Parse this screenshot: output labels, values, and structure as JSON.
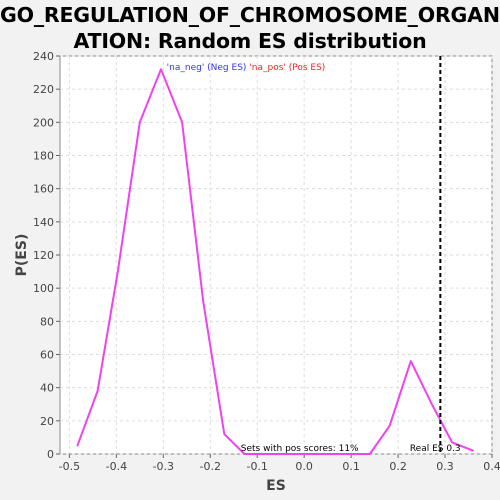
{
  "title": {
    "line1": "GO_REGULATION_OF_CHROMOSOME_ORGANIZ",
    "line2": "ATION: Random ES distribution"
  },
  "colors": {
    "background": "#f2f2f2",
    "plot_bg": "#ffffff",
    "curve": "#ee44ee",
    "neg_legend": "#3333ff",
    "pos_legend": "#ee2222",
    "grid": "#dddddd",
    "real_es_line": "#000000"
  },
  "chart_data": {
    "type": "line",
    "title": "GO_REGULATION_OF_CHROMOSOME_ORGANIZATION: Random ES distribution",
    "xlabel": "ES",
    "ylabel": "P(ES)",
    "xlim": [
      -0.52,
      0.4
    ],
    "ylim": [
      0,
      240
    ],
    "xticks": [
      -0.5,
      -0.4,
      -0.3,
      -0.2,
      -0.1,
      0.0,
      0.1,
      0.2,
      0.3,
      0.4
    ],
    "xtick_labels": [
      "-0.5",
      "-0.4",
      "-0.3",
      "-0.2",
      "-0.1",
      "0.0",
      "0.1",
      "0.2",
      "0.3",
      "0.4"
    ],
    "yticks": [
      0,
      20,
      40,
      60,
      80,
      100,
      120,
      140,
      160,
      180,
      200,
      220,
      240
    ],
    "ytick_labels": [
      "0",
      "20",
      "40",
      "60",
      "80",
      "100",
      "120",
      "140",
      "160",
      "180",
      "200",
      "220",
      "240"
    ],
    "grid": true,
    "legend_position": "top-center",
    "series": [
      {
        "x": [
          -0.483,
          -0.44,
          -0.397,
          -0.35,
          -0.305,
          -0.26,
          -0.215,
          -0.17,
          -0.127,
          -0.085,
          -0.04,
          0.005,
          0.05,
          0.095,
          0.14,
          0.182,
          0.227,
          0.272,
          0.315,
          0.36
        ],
        "y": [
          5,
          38,
          110,
          200,
          232,
          200,
          92,
          12,
          0,
          0,
          0,
          0,
          0,
          0,
          0,
          17,
          56,
          30,
          7,
          2
        ]
      }
    ],
    "legend": [
      {
        "label": "'na_neg' (Neg ES)",
        "color": "#3333ff"
      },
      {
        "label": "'na_pos' (Pos ES)",
        "color": "#ee2222"
      }
    ],
    "real_es": 0.29,
    "annotations": {
      "sets_with_pos": "Sets with pos scores: 11%",
      "real_es_label": "Real ES 0.3"
    }
  }
}
